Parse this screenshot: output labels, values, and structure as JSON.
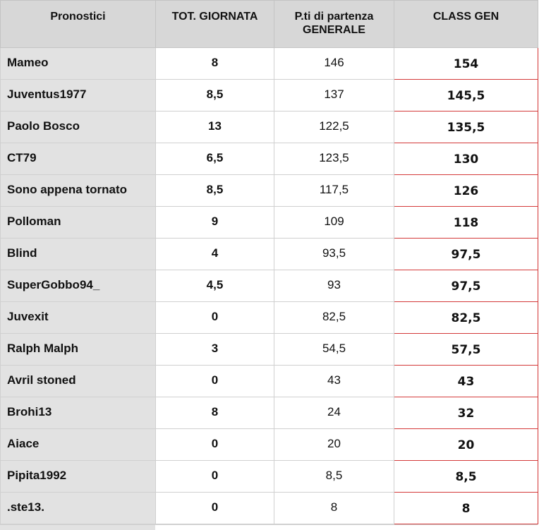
{
  "table": {
    "headers": {
      "name": "Pronostici",
      "day_total": "TOT. GIORNATA",
      "start_points_line1": "P.ti di partenza",
      "start_points_line2": "GENERALE",
      "overall": "CLASS GEN"
    },
    "rows": [
      {
        "name": "Mameo",
        "day": "8",
        "start": "146",
        "total": "154"
      },
      {
        "name": "Juventus1977",
        "day": "8,5",
        "start": "137",
        "total": "145,5"
      },
      {
        "name": "Paolo Bosco",
        "day": "13",
        "start": "122,5",
        "total": "135,5"
      },
      {
        "name": "CT79",
        "day": "6,5",
        "start": "123,5",
        "total": "130"
      },
      {
        "name": "Sono appena tornato",
        "day": "8,5",
        "start": "117,5",
        "total": "126"
      },
      {
        "name": "Polloman",
        "day": "9",
        "start": "109",
        "total": "118"
      },
      {
        "name": "Blind",
        "day": "4",
        "start": "93,5",
        "total": "97,5"
      },
      {
        "name": "SuperGobbo94_",
        "day": "4,5",
        "start": "93",
        "total": "97,5"
      },
      {
        "name": "Juvexit",
        "day": "0",
        "start": "82,5",
        "total": "82,5"
      },
      {
        "name": "Ralph Malph",
        "day": "3",
        "start": "54,5",
        "total": "57,5"
      },
      {
        "name": "Avril stoned",
        "day": "0",
        "start": "43",
        "total": "43"
      },
      {
        "name": "Brohi13",
        "day": "8",
        "start": "24",
        "total": "32"
      },
      {
        "name": "Aiace",
        "day": "0",
        "start": "20",
        "total": "20"
      },
      {
        "name": "Pipita1992",
        "day": "0",
        "start": "8,5",
        "total": "8,5"
      },
      {
        "name": ".ste13.",
        "day": "0",
        "start": "8",
        "total": "8"
      }
    ]
  },
  "colors": {
    "header_bg": "#d7d7d7",
    "name_column_bg": "#e2e2e2",
    "total_border": "#d43a3a",
    "grid": "#d0d0d0"
  }
}
